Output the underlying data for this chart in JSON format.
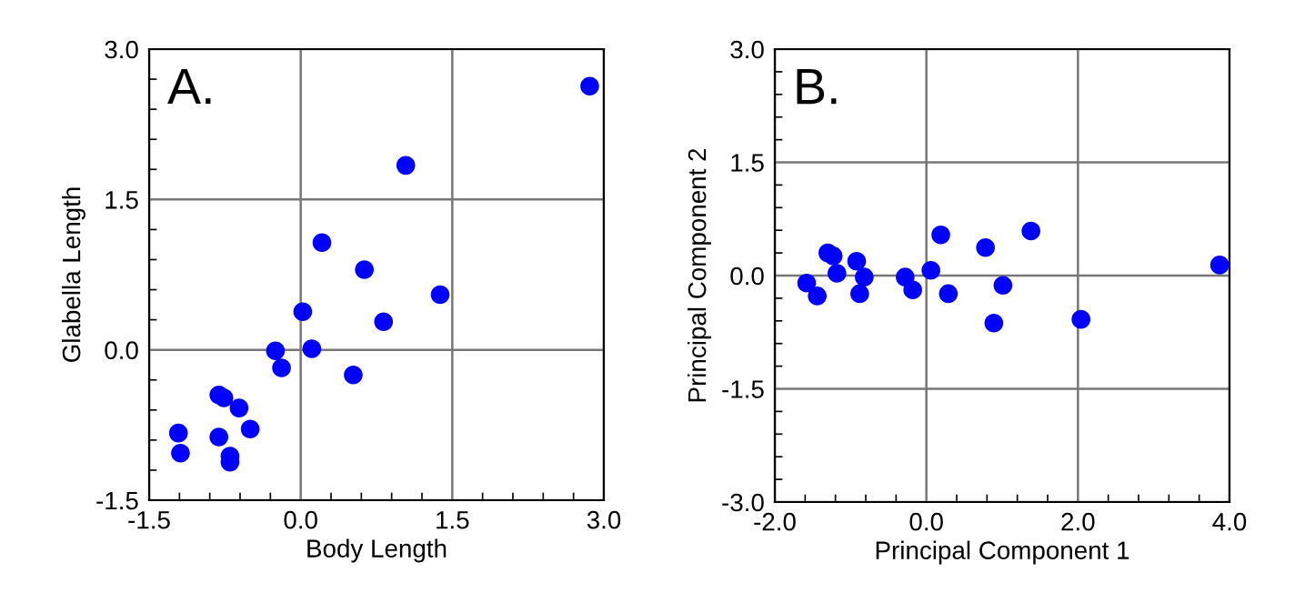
{
  "chart_data": [
    {
      "type": "scatter",
      "xlabel": "Body Length",
      "ylabel": "Glabella Length",
      "annotations": [
        "A."
      ],
      "x": [
        2.86,
        1.04,
        0.21,
        0.63,
        1.38,
        0.02,
        0.82,
        -0.25,
        0.11,
        -0.19,
        0.52,
        -0.81,
        -0.76,
        -0.61,
        -0.5,
        -1.21,
        -0.81,
        -1.19,
        -0.7,
        -0.7
      ],
      "series": [
        {
          "color": "#0000ff",
          "values": [
            2.63,
            1.84,
            1.07,
            0.8,
            0.55,
            0.38,
            0.28,
            -0.01,
            0.01,
            -0.18,
            -0.25,
            -0.45,
            -0.48,
            -0.58,
            -0.79,
            -0.83,
            -0.87,
            -1.03,
            -1.06,
            -1.12
          ]
        }
      ],
      "xlim": [
        -1.5,
        3.0
      ],
      "ylim": [
        -1.5,
        3.0
      ],
      "xticks": [
        {
          "value": -1.5,
          "label": "-1.5"
        },
        {
          "value": 0,
          "label": "0.0"
        },
        {
          "value": 1.5,
          "label": "1.5"
        },
        {
          "value": 3.0,
          "label": "3.0"
        }
      ],
      "yticks": [
        {
          "value": -1.5,
          "label": "-1.5"
        },
        {
          "value": 0,
          "label": "0.0"
        },
        {
          "value": 1.5,
          "label": "1.5"
        },
        {
          "value": 3.0,
          "label": "3.0"
        }
      ],
      "grid": true,
      "marker": "circle",
      "legend": false
    },
    {
      "type": "scatter",
      "xlabel": "Principal Component 1",
      "ylabel": "Principal Component 2",
      "annotations": [
        "B."
      ],
      "x": [
        -1.58,
        -1.44,
        -1.3,
        -1.23,
        -1.18,
        -0.92,
        -0.82,
        -0.88,
        -0.28,
        -0.18,
        0.06,
        0.19,
        0.29,
        0.78,
        1.01,
        0.89,
        1.38,
        2.04,
        3.87
      ],
      "series": [
        {
          "color": "#0000ff",
          "values": [
            -0.1,
            -0.27,
            0.3,
            0.26,
            0.03,
            0.19,
            -0.02,
            -0.24,
            -0.02,
            -0.19,
            0.07,
            0.54,
            -0.24,
            0.37,
            -0.13,
            -0.63,
            0.59,
            -0.58,
            0.14
          ]
        }
      ],
      "xlim": [
        -2.0,
        4.0
      ],
      "ylim": [
        -3.0,
        3.0
      ],
      "xticks": [
        {
          "value": -2,
          "label": "-2.0"
        },
        {
          "value": 0,
          "label": "0.0"
        },
        {
          "value": 2,
          "label": "2.0"
        },
        {
          "value": 4,
          "label": "4.0"
        }
      ],
      "yticks": [
        {
          "value": -3,
          "label": "-3.0"
        },
        {
          "value": -1.5,
          "label": "-1.5"
        },
        {
          "value": 0,
          "label": "0.0"
        },
        {
          "value": 1.5,
          "label": "1.5"
        },
        {
          "value": 3,
          "label": "3.0"
        }
      ],
      "grid": true,
      "marker": "circle",
      "legend": false
    }
  ]
}
